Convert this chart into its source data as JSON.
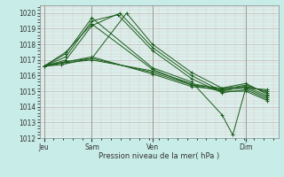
{
  "background_color": "#c8ece8",
  "plot_bg_color": "#daf0ec",
  "grid_major_color": "#b8d8d4",
  "grid_minor_color": "#c8e4e0",
  "line_color": "#1a5c1a",
  "ylim": [
    1012,
    1020.5
  ],
  "yticks": [
    1012,
    1013,
    1014,
    1015,
    1016,
    1017,
    1018,
    1019,
    1020
  ],
  "xlabel": "Pression niveau de la mer( hPa )",
  "xtick_labels": [
    "Jeu",
    "Sam",
    "Ven",
    "Dim"
  ],
  "xtick_positions": [
    0.0,
    0.22,
    0.5,
    0.93
  ],
  "xlim": [
    -0.02,
    1.08
  ],
  "series": [
    [
      0.0,
      1016.6,
      0.1,
      1016.9,
      0.22,
      1017.1,
      0.38,
      1020.0,
      0.5,
      1018.0,
      0.68,
      1016.2,
      0.82,
      1015.2,
      0.93,
      1015.5,
      1.03,
      1014.8
    ],
    [
      0.0,
      1016.6,
      0.1,
      1017.0,
      0.22,
      1019.2,
      0.35,
      1020.0,
      0.5,
      1017.8,
      0.68,
      1016.0,
      0.82,
      1015.0,
      0.93,
      1015.3,
      1.03,
      1014.7
    ],
    [
      0.0,
      1016.6,
      0.1,
      1017.2,
      0.22,
      1019.5,
      0.34,
      1019.9,
      0.5,
      1017.6,
      0.68,
      1015.8,
      0.82,
      1014.9,
      0.93,
      1015.1,
      1.03,
      1014.5
    ],
    [
      0.0,
      1016.6,
      0.1,
      1017.4,
      0.22,
      1019.7,
      0.5,
      1016.5,
      0.68,
      1015.6,
      0.82,
      1013.5,
      0.87,
      1012.2,
      0.93,
      1015.2,
      1.03,
      1014.6
    ],
    [
      0.0,
      1016.6,
      0.1,
      1017.5,
      0.22,
      1019.3,
      0.5,
      1016.4,
      0.68,
      1015.4,
      0.82,
      1015.0,
      0.93,
      1015.0,
      1.03,
      1014.4
    ],
    [
      0.0,
      1016.6,
      0.08,
      1016.8,
      0.22,
      1017.0,
      0.5,
      1016.3,
      0.68,
      1015.5,
      0.82,
      1015.1,
      0.93,
      1015.4,
      1.03,
      1014.9
    ],
    [
      0.0,
      1016.6,
      0.08,
      1016.7,
      0.22,
      1017.1,
      0.5,
      1016.2,
      0.68,
      1015.4,
      0.82,
      1015.2,
      0.93,
      1015.3,
      1.03,
      1015.0
    ],
    [
      0.0,
      1016.6,
      0.22,
      1017.2,
      0.5,
      1016.1,
      0.68,
      1015.3,
      0.82,
      1015.1,
      0.93,
      1015.2,
      1.03,
      1015.1
    ]
  ]
}
